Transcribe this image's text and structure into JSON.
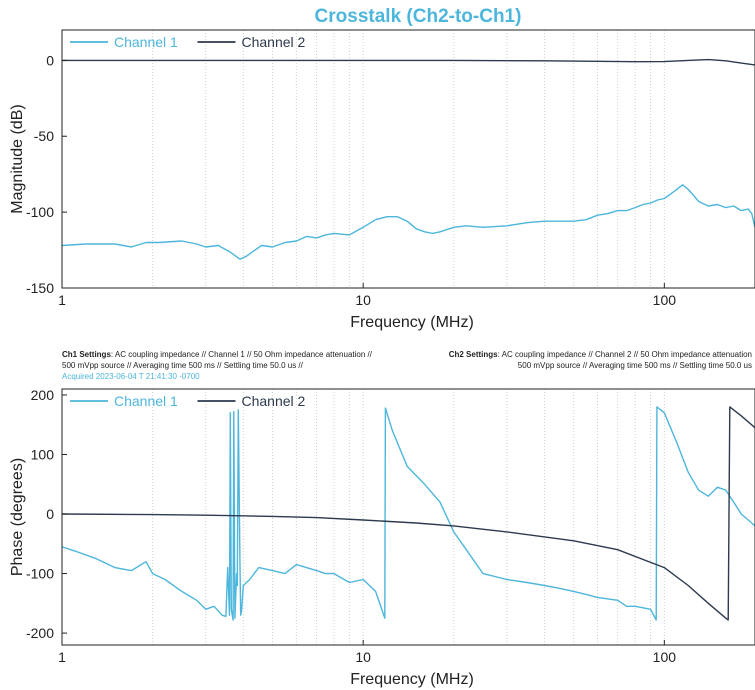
{
  "title": "Crosstalk (Ch2-to-Ch1)",
  "colors": {
    "channel1": "#4db6dc",
    "channel2": "#2d3a4f",
    "grid_major": "#d9d9d9",
    "grid_minor": "#cfcfcf"
  },
  "settings": {
    "ch1_label": "Ch1 Settings",
    "ch1_line1": ": AC coupling impedance  //  Channel 1  //  50 Ohm impedance attenuation  //",
    "ch1_line2": "500 mVpp source  //  Averaging time 500 ms  //  Settling time 50.0 us  //",
    "ch1_acquired": "Acquired 2023-06-04 T 21:41:30 -0700",
    "ch2_label": "Ch2 Settings",
    "ch2_line1": ": AC coupling impedance  //  Channel 2  //  50 Ohm impedance attenuation",
    "ch2_line2": "500 mVpp source  //  Averaging time 500 ms  //  Settling time 50.0 us"
  },
  "chart_data": [
    {
      "type": "line",
      "title": "Crosstalk (Ch2-to-Ch1)",
      "xlabel": "Frequency (MHz)",
      "ylabel": "Magnitude (dB)",
      "xscale": "log",
      "xlim": [
        1,
        200
      ],
      "ylim": [
        -150,
        20
      ],
      "xticks": [
        1,
        10,
        100
      ],
      "xtick_labels": [
        "1",
        "10",
        "100"
      ],
      "yticks": [
        0,
        -50,
        -100,
        -150
      ],
      "ytick_labels": [
        "0",
        "-50",
        "-100",
        "-150"
      ],
      "grid": "vertical dotted minor grid",
      "legend_position": "top-left",
      "series": [
        {
          "name": "Channel 1",
          "color": "#4db6dc",
          "x": [
            1,
            1.2,
            1.5,
            1.7,
            1.9,
            2.1,
            2.5,
            2.8,
            3.0,
            3.3,
            3.6,
            3.9,
            4.1,
            4.3,
            4.6,
            5.0,
            5.5,
            6.0,
            6.5,
            7.0,
            7.5,
            8.0,
            9.0,
            10.0,
            11.0,
            12.0,
            13.0,
            14.0,
            15.0,
            16.0,
            17.0,
            18.0,
            20.0,
            22.0,
            25.0,
            30.0,
            35.0,
            40.0,
            45.0,
            50.0,
            55.0,
            60.0,
            65.0,
            70.0,
            75.0,
            80.0,
            85.0,
            90.0,
            95.0,
            100.0,
            105.0,
            110.0,
            115.0,
            120.0,
            125.0,
            130.0,
            140.0,
            150.0,
            160.0,
            170.0,
            180.0,
            190.0,
            195.0,
            200.0
          ],
          "values": [
            -122,
            -121,
            -121,
            -123,
            -120,
            -120,
            -119,
            -121,
            -123,
            -122,
            -126,
            -131,
            -129,
            -126,
            -122,
            -123,
            -120,
            -119,
            -116,
            -117,
            -115,
            -114,
            -115,
            -110,
            -105,
            -103,
            -103,
            -106,
            -111,
            -113,
            -114,
            -113,
            -110,
            -109,
            -110,
            -109,
            -107,
            -106,
            -106,
            -106,
            -105,
            -102,
            -101,
            -99,
            -99,
            -97,
            -95,
            -94,
            -92,
            -91,
            -88,
            -85,
            -82,
            -85,
            -89,
            -93,
            -96,
            -95,
            -97,
            -96,
            -99,
            -98,
            -101,
            -110
          ]
        },
        {
          "name": "Channel 2",
          "color": "#2d3a4f",
          "x": [
            1,
            2,
            5,
            10,
            20,
            40,
            60,
            80,
            100,
            120,
            140,
            160,
            180,
            200
          ],
          "values": [
            0,
            0,
            0,
            0,
            0,
            -0.3,
            -0.6,
            -0.9,
            -0.8,
            0,
            0.5,
            -0.3,
            -1.8,
            -3
          ]
        }
      ]
    },
    {
      "type": "line",
      "title": "",
      "xlabel": "Frequency (MHz)",
      "ylabel": "Phase (degrees)",
      "xscale": "log",
      "xlim": [
        1,
        200
      ],
      "ylim": [
        -220,
        210
      ],
      "xticks": [
        1,
        10,
        100
      ],
      "xtick_labels": [
        "1",
        "10",
        "100"
      ],
      "yticks": [
        200,
        100,
        0,
        -100,
        -200
      ],
      "ytick_labels": [
        "200",
        "100",
        "0",
        "-100",
        "-200"
      ],
      "grid": "vertical dotted minor grid",
      "legend_position": "top-left",
      "series": [
        {
          "name": "Channel 1",
          "color": "#4db6dc",
          "x": [
            1,
            1.1,
            1.3,
            1.5,
            1.7,
            1.9,
            2.0,
            2.2,
            2.5,
            2.8,
            3.0,
            3.2,
            3.4,
            3.5,
            3.55,
            3.6,
            3.62,
            3.65,
            3.7,
            3.72,
            3.75,
            3.8,
            3.82,
            3.85,
            3.9,
            3.92,
            3.95,
            4.0,
            4.2,
            4.5,
            5.0,
            5.5,
            6.0,
            7.0,
            7.5,
            8.0,
            9.0,
            10.0,
            11.0,
            11.8,
            11.85,
            12.5,
            14.0,
            16.0,
            18.0,
            20.0,
            22.0,
            25.0,
            30.0,
            35.0,
            40.0,
            45.0,
            50.0,
            55.0,
            60.0,
            70.0,
            75.0,
            80.0,
            90.0,
            94.0,
            94.5,
            100.0,
            110.0,
            120.0,
            130.0,
            140.0,
            150.0,
            160.0,
            170.0,
            180.0,
            190.0,
            200.0
          ],
          "values": [
            -55,
            -62,
            -75,
            -90,
            -95,
            -80,
            -100,
            -110,
            -130,
            -145,
            -160,
            -155,
            -170,
            -172,
            -90,
            -170,
            170,
            -160,
            -178,
            172,
            -175,
            -100,
            -120,
            175,
            -90,
            -170,
            -160,
            -120,
            -110,
            -90,
            -95,
            -100,
            -85,
            -95,
            -100,
            -100,
            -115,
            -110,
            -130,
            -175,
            178,
            140,
            80,
            50,
            20,
            -30,
            -60,
            -100,
            -110,
            -115,
            -120,
            -125,
            -130,
            -135,
            -140,
            -145,
            -155,
            -155,
            -160,
            -178,
            180,
            170,
            120,
            70,
            40,
            30,
            45,
            40,
            20,
            0,
            -10,
            -20
          ]
        },
        {
          "name": "Channel 2",
          "color": "#2d3a4f",
          "x": [
            1,
            2,
            3,
            5,
            7,
            10,
            15,
            20,
            30,
            50,
            70,
            100,
            120,
            140,
            160,
            163,
            165,
            180,
            200
          ],
          "values": [
            0,
            -1,
            -2,
            -4,
            -6,
            -10,
            -15,
            -20,
            -30,
            -45,
            -60,
            -90,
            -120,
            -150,
            -175,
            -178,
            180,
            165,
            145
          ]
        }
      ]
    }
  ]
}
